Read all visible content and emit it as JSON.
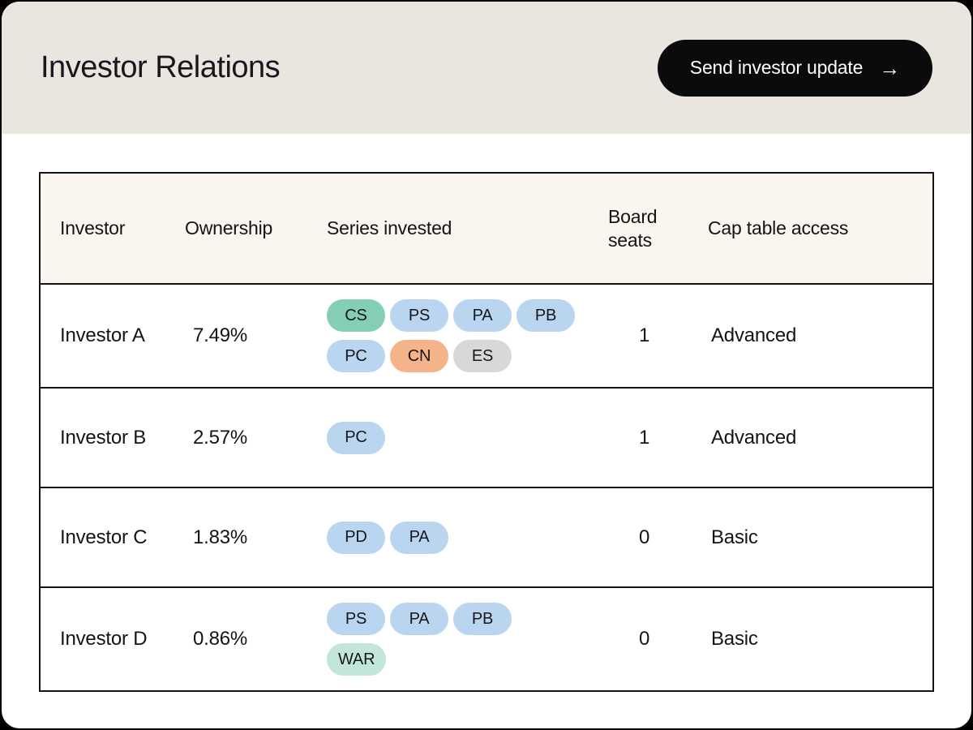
{
  "header": {
    "title": "Investor Relations",
    "send_button_label": "Send investor update",
    "send_button_arrow": "→"
  },
  "colors": {
    "band_bg": "#ebe5e0",
    "table_head_bg": "#faf5ef",
    "border": "#141414",
    "button_bg": "#0b0b0b",
    "blue": "#b9d5ef",
    "green": "#84ceb4",
    "orange": "#f4b388",
    "gray": "#d8d8d6",
    "mint": "#c2e7d8"
  },
  "table": {
    "columns": [
      "Investor",
      "Ownership",
      "Series invested",
      "Board seats",
      "Cap table access"
    ],
    "rows": [
      {
        "investor": "Investor A",
        "ownership": "7.49%",
        "series": [
          {
            "label": "CS",
            "color": "green"
          },
          {
            "label": "PS",
            "color": "blue"
          },
          {
            "label": "PA",
            "color": "blue"
          },
          {
            "label": "PB",
            "color": "blue"
          },
          {
            "label": "PC",
            "color": "blue"
          },
          {
            "label": "CN",
            "color": "orange"
          },
          {
            "label": "ES",
            "color": "gray"
          }
        ],
        "board_seats": "1",
        "cap_table_access": "Advanced"
      },
      {
        "investor": "Investor B",
        "ownership": "2.57%",
        "series": [
          {
            "label": "PC",
            "color": "blue"
          }
        ],
        "board_seats": "1",
        "cap_table_access": "Advanced"
      },
      {
        "investor": "Investor C",
        "ownership": "1.83%",
        "series": [
          {
            "label": "PD",
            "color": "blue"
          },
          {
            "label": "PA",
            "color": "blue"
          }
        ],
        "board_seats": "0",
        "cap_table_access": "Basic"
      },
      {
        "investor": "Investor D",
        "ownership": "0.86%",
        "series": [
          {
            "label": "PS",
            "color": "blue"
          },
          {
            "label": "PA",
            "color": "blue"
          },
          {
            "label": "PB",
            "color": "blue"
          },
          {
            "label": "WAR",
            "color": "mint"
          }
        ],
        "board_seats": "0",
        "cap_table_access": "Basic"
      }
    ]
  }
}
